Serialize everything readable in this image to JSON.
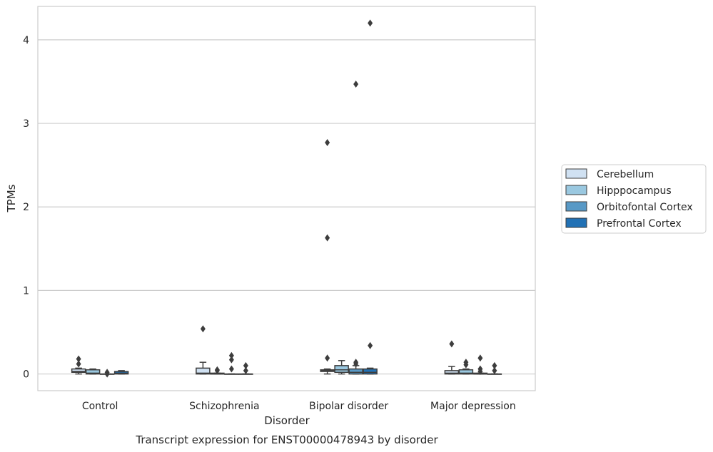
{
  "chart_data": {
    "type": "box",
    "xlabel": "Disorder",
    "ylabel": "TPMs",
    "caption": "Transcript expression for ENST00000478943 by disorder",
    "ylim": [
      -0.2,
      4.4
    ],
    "yticks": [
      "0",
      "1",
      "2",
      "3",
      "4"
    ],
    "ytick_values": [
      0,
      1,
      2,
      3,
      4
    ],
    "grid": "horizontal",
    "legend_placement": "right",
    "categories": [
      "Control",
      "Schizophrenia",
      "Bipolar disorder",
      "Major depression"
    ],
    "series": [
      {
        "name": "Cerebellum",
        "color": "#d0e1f2",
        "boxes": [
          {
            "q1": 0.02,
            "median": 0.03,
            "q3": 0.06,
            "whisker_low": 0.0,
            "whisker_high": 0.07,
            "outliers": [
              0.12,
              0.18
            ]
          },
          {
            "q1": 0.0,
            "median": 0.01,
            "q3": 0.07,
            "whisker_low": 0.0,
            "whisker_high": 0.14,
            "outliers": [
              0.54
            ]
          },
          {
            "q1": 0.03,
            "median": 0.04,
            "q3": 0.05,
            "whisker_low": 0.0,
            "whisker_high": 0.06,
            "outliers": [
              0.19,
              1.63,
              2.77
            ]
          },
          {
            "q1": 0.0,
            "median": 0.01,
            "q3": 0.04,
            "whisker_low": 0.0,
            "whisker_high": 0.09,
            "outliers": [
              0.36
            ]
          }
        ]
      },
      {
        "name": "Hipppocampus",
        "color": "#9ac8e0",
        "boxes": [
          {
            "q1": 0.0,
            "median": 0.01,
            "q3": 0.05,
            "whisker_low": 0.0,
            "whisker_high": 0.06,
            "outliers": []
          },
          {
            "q1": 0.0,
            "median": 0.0,
            "q3": 0.01,
            "whisker_low": 0.0,
            "whisker_high": 0.01,
            "outliers": [
              0.04,
              0.05
            ]
          },
          {
            "q1": 0.02,
            "median": 0.05,
            "q3": 0.1,
            "whisker_low": 0.0,
            "whisker_high": 0.16,
            "outliers": []
          },
          {
            "q1": 0.0,
            "median": 0.01,
            "q3": 0.05,
            "whisker_low": 0.0,
            "whisker_high": 0.06,
            "outliers": [
              0.11,
              0.14
            ]
          }
        ]
      },
      {
        "name": "Orbitofontal Cortex",
        "color": "#5899c6",
        "boxes": [
          {
            "q1": 0.0,
            "median": 0.0,
            "q3": 0.0,
            "whisker_low": 0.0,
            "whisker_high": 0.0,
            "outliers": [
              0.0,
              0.02
            ]
          },
          {
            "q1": 0.0,
            "median": 0.0,
            "q3": 0.0,
            "whisker_low": 0.0,
            "whisker_high": 0.0,
            "outliers": [
              0.06,
              0.17,
              0.22
            ]
          },
          {
            "q1": 0.0,
            "median": 0.02,
            "q3": 0.06,
            "whisker_low": 0.0,
            "whisker_high": 0.1,
            "outliers": [
              0.12,
              0.14,
              3.47
            ]
          },
          {
            "q1": 0.0,
            "median": 0.0,
            "q3": 0.01,
            "whisker_low": 0.0,
            "whisker_high": 0.01,
            "outliers": [
              0.03,
              0.06,
              0.19
            ]
          }
        ]
      },
      {
        "name": "Prefrontal Cortex",
        "color": "#2171b5",
        "boxes": [
          {
            "q1": 0.0,
            "median": 0.01,
            "q3": 0.03,
            "whisker_low": 0.0,
            "whisker_high": 0.04,
            "outliers": []
          },
          {
            "q1": 0.0,
            "median": 0.0,
            "q3": 0.0,
            "whisker_low": 0.0,
            "whisker_high": 0.0,
            "outliers": [
              0.04,
              0.1
            ]
          },
          {
            "q1": 0.0,
            "median": 0.02,
            "q3": 0.06,
            "whisker_low": 0.0,
            "whisker_high": 0.07,
            "outliers": [
              0.34,
              4.2
            ]
          },
          {
            "q1": 0.0,
            "median": 0.0,
            "q3": 0.0,
            "whisker_low": 0.0,
            "whisker_high": 0.0,
            "outliers": [
              0.04,
              0.1
            ]
          }
        ]
      }
    ],
    "colors": {
      "grid": "#cccccc",
      "axes_edge": "#cccccc",
      "box_edge": "#3d3d3d",
      "outlier": "#3d3d3d"
    }
  }
}
